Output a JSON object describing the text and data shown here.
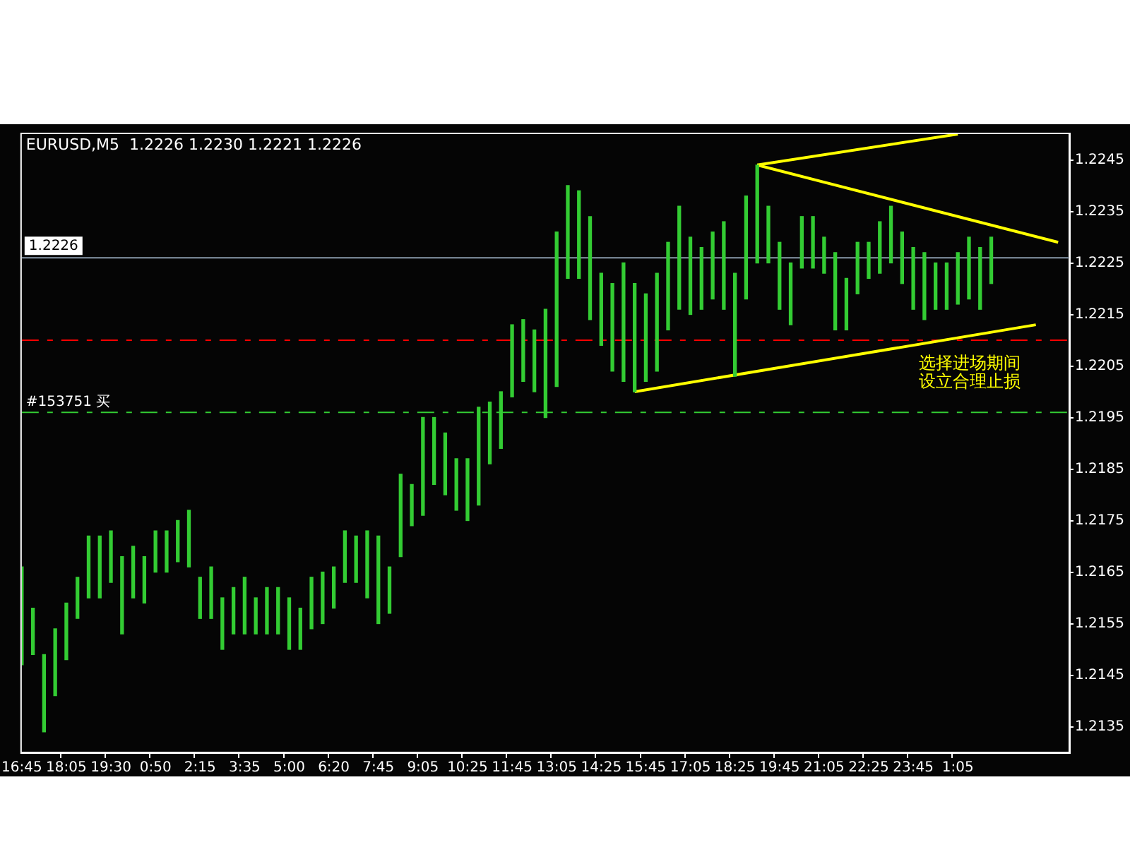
{
  "chart_data": {
    "type": "bar",
    "title": "EURUSD,M5  1.2226 1.2230 1.2221 1.2226",
    "categories": [
      "16:45",
      null,
      null,
      null,
      "18:05",
      null,
      null,
      null,
      "19:30",
      null,
      null,
      null,
      "0:50",
      null,
      null,
      null,
      "2:15",
      null,
      null,
      null,
      "3:35",
      null,
      null,
      null,
      "5:00",
      null,
      null,
      null,
      "6:20",
      null,
      null,
      null,
      "7:45",
      null,
      null,
      null,
      "9:05",
      null,
      null,
      null,
      "10:25",
      null,
      null,
      null,
      "11:45",
      null,
      null,
      null,
      "13:05",
      null,
      null,
      null,
      "14:25",
      null,
      null,
      null,
      "15:45",
      null,
      null,
      null,
      "17:05",
      null,
      null,
      null,
      "18:25",
      null,
      null,
      null,
      "19:45",
      null,
      null,
      null,
      "21:05",
      null,
      null,
      null,
      "22:25",
      null,
      null,
      null,
      "23:45",
      null,
      null,
      null,
      "1:05",
      null,
      null,
      null,
      null,
      null,
      null,
      null,
      null,
      null,
      null
    ],
    "series": [
      {
        "color": "#33cc33",
        "base": [
          1.2147,
          1.2149,
          1.2134,
          1.2141,
          1.2148,
          1.2156,
          1.216,
          1.216,
          1.2163,
          1.2153,
          1.216,
          1.2159,
          1.2165,
          1.2165,
          1.2167,
          1.2166,
          1.2156,
          1.2156,
          1.215,
          1.2153,
          1.2153,
          1.2153,
          1.2153,
          1.2153,
          1.215,
          1.215,
          1.2154,
          1.2155,
          1.2158,
          1.2163,
          1.2163,
          1.216,
          1.2155,
          1.2157,
          1.2168,
          1.2174,
          1.2176,
          1.2182,
          1.218,
          1.2177,
          1.2175,
          1.2178,
          1.2186,
          1.2189,
          1.2199,
          1.2202,
          1.22,
          1.2195,
          1.2201,
          1.2222,
          1.2222,
          1.2214,
          1.2209,
          1.2204,
          1.2202,
          1.22,
          1.2202,
          1.2204,
          1.2212,
          1.2216,
          1.2215,
          1.2216,
          1.2218,
          1.2216,
          1.2203,
          1.2218,
          1.2225,
          1.2225,
          1.2216,
          1.2213,
          1.2224,
          1.2224,
          1.2223,
          1.2212,
          1.2212,
          1.2219,
          1.2222,
          1.2223,
          1.2225,
          1.2221,
          1.2216,
          1.2214,
          1.2216,
          1.2216,
          1.2217,
          1.2218,
          1.2216,
          1.2221,
          null,
          null,
          null,
          null,
          null,
          null,
          null
        ],
        "values": [
          0.0019,
          0.0009,
          0.0015,
          0.0013,
          0.0011,
          0.0008,
          0.0012,
          0.0012,
          0.001,
          0.0015,
          0.001,
          0.0009,
          0.0008,
          0.0008,
          0.0008,
          0.0011,
          0.0008,
          0.001,
          0.001,
          0.0009,
          0.0011,
          0.0007,
          0.0009,
          0.0009,
          0.001,
          0.0008,
          0.001,
          0.001,
          0.0008,
          0.001,
          0.0009,
          0.0013,
          0.0017,
          0.0009,
          0.0016,
          0.0008,
          0.0019,
          0.0013,
          0.0012,
          0.001,
          0.0012,
          0.0019,
          0.0012,
          0.0011,
          0.0014,
          0.0012,
          0.0012,
          0.0021,
          0.003,
          0.0018,
          0.0017,
          0.002,
          0.0014,
          0.0017,
          0.0023,
          0.0021,
          0.0017,
          0.0019,
          0.0017,
          0.002,
          0.0015,
          0.0012,
          0.0013,
          0.0017,
          0.002,
          0.002,
          0.0019,
          0.0011,
          0.0013,
          0.0012,
          0.001,
          0.001,
          0.0007,
          0.0015,
          0.001,
          0.001,
          0.0007,
          0.001,
          0.0011,
          0.001,
          0.0012,
          0.0013,
          0.0009,
          0.0009,
          0.001,
          0.0012,
          0.0012,
          0.0009,
          null,
          null,
          null,
          null,
          null,
          null,
          null
        ]
      },
      {
        "type": "line",
        "color": "#ffff00",
        "values": [
          null,
          null,
          null,
          null,
          null,
          null,
          null,
          null,
          null,
          null,
          null,
          null,
          null,
          null,
          null,
          null,
          null,
          null,
          null,
          null,
          null,
          null,
          null,
          null,
          null,
          null,
          null,
          null,
          null,
          null,
          null,
          null,
          null,
          null,
          null,
          null,
          null,
          null,
          null,
          null,
          null,
          null,
          null,
          null,
          null,
          null,
          null,
          null,
          null,
          null,
          null,
          null,
          null,
          null,
          null,
          1.22,
          null,
          null,
          null,
          null,
          null,
          null,
          null,
          null,
          null,
          null,
          null,
          null,
          null,
          null,
          null,
          null,
          null,
          null,
          null,
          null,
          null,
          null,
          null,
          null,
          null,
          null,
          null,
          null,
          null,
          null,
          null,
          null,
          null,
          null,
          null,
          1.2213,
          null,
          null,
          null
        ]
      },
      {
        "type": "line",
        "color": "#ffff00",
        "values": [
          null,
          null,
          null,
          null,
          null,
          null,
          null,
          null,
          null,
          null,
          null,
          null,
          null,
          null,
          null,
          null,
          null,
          null,
          null,
          null,
          null,
          null,
          null,
          null,
          null,
          null,
          null,
          null,
          null,
          null,
          null,
          null,
          null,
          null,
          null,
          null,
          null,
          null,
          null,
          null,
          null,
          null,
          null,
          null,
          null,
          null,
          null,
          null,
          null,
          null,
          null,
          null,
          null,
          null,
          null,
          null,
          null,
          null,
          null,
          null,
          null,
          null,
          null,
          null,
          null,
          null,
          1.2244,
          null,
          null,
          null,
          null,
          null,
          null,
          null,
          null,
          null,
          null,
          null,
          null,
          null,
          null,
          null,
          null,
          null,
          null,
          null,
          null,
          null,
          null,
          null,
          null,
          null,
          null,
          1.2229,
          null
        ]
      },
      {
        "type": "line",
        "color": "#ffff00",
        "values": [
          null,
          null,
          null,
          null,
          null,
          null,
          null,
          null,
          null,
          null,
          null,
          null,
          null,
          null,
          null,
          null,
          null,
          null,
          null,
          null,
          null,
          null,
          null,
          null,
          null,
          null,
          null,
          null,
          null,
          null,
          null,
          null,
          null,
          null,
          null,
          null,
          null,
          null,
          null,
          null,
          null,
          null,
          null,
          null,
          null,
          null,
          null,
          null,
          null,
          null,
          null,
          null,
          null,
          null,
          null,
          null,
          null,
          null,
          null,
          null,
          null,
          null,
          null,
          null,
          null,
          null,
          1.2244,
          null,
          null,
          null,
          null,
          null,
          null,
          null,
          null,
          null,
          null,
          null,
          null,
          null,
          null,
          null,
          null,
          null,
          1.225,
          null,
          null,
          null,
          null,
          null,
          null,
          null,
          null,
          null,
          null
        ]
      }
    ],
    "ylim": [
      1.213,
      1.225
    ],
    "yticks": [
      1.2135,
      1.2145,
      1.2155,
      1.2165,
      1.2175,
      1.2185,
      1.2195,
      1.2205,
      1.2215,
      1.2225,
      1.2235,
      1.2245
    ],
    "ref_lines": [
      {
        "axis": "y",
        "value": 1.2226,
        "label": "1.2226",
        "color": "#8899aa",
        "line_style": "solid"
      },
      {
        "axis": "y",
        "value": 1.221,
        "color": "#ff0000",
        "line_style": "dashed"
      },
      {
        "axis": "y",
        "value": 1.2196,
        "label": "#153751 买",
        "color": "#33cc33",
        "line_style": "dashed"
      }
    ],
    "annotations": [
      "选择进场期间",
      "设立合理止损"
    ],
    "grid": false,
    "legend": false
  }
}
